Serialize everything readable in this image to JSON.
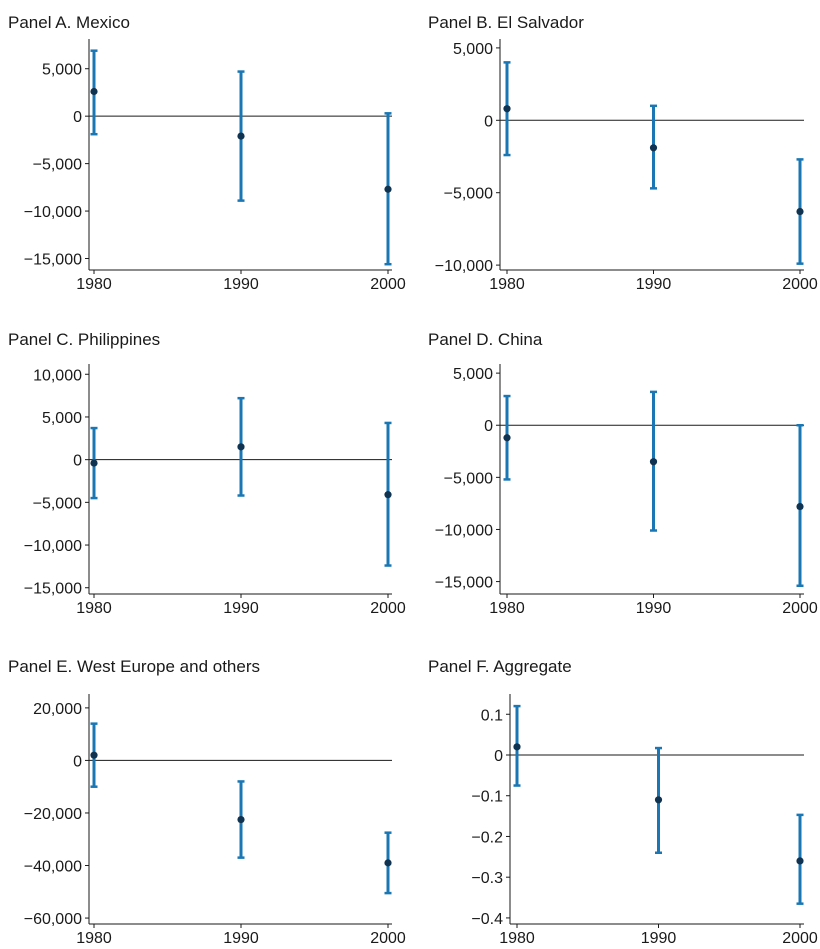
{
  "figure": {
    "colors": {
      "bar": "#1a77b4",
      "point": "#0f3350",
      "axis": "#1a1a1a",
      "zero_line": "#1a1a1a"
    }
  },
  "chart_data": [
    {
      "type": "scatter",
      "title": "Panel A. Mexico",
      "x": [
        "1980",
        "1990",
        "2000"
      ],
      "estimate": [
        2600,
        -2100,
        -7700
      ],
      "ci_low": [
        -1900,
        -8900,
        -15600
      ],
      "ci_high": [
        6900,
        4700,
        300
      ],
      "yticks": [
        5000,
        0,
        -5000,
        -10000,
        -15000
      ],
      "ytick_labels": [
        "5,000",
        "0",
        "−5,000",
        "−10,000",
        "−15,000"
      ],
      "ylim": [
        -16000,
        7500
      ],
      "grid": false
    },
    {
      "type": "scatter",
      "title": "Panel B. El Salvador",
      "x": [
        "1980",
        "1990",
        "2000"
      ],
      "estimate": [
        800,
        -1900,
        -6300
      ],
      "ci_low": [
        -2400,
        -4700,
        -9900
      ],
      "ci_high": [
        4000,
        1000,
        -2700
      ],
      "yticks": [
        5000,
        0,
        -5000,
        -10000
      ],
      "ytick_labels": [
        "5,000",
        "0",
        "−5,000",
        "−10,000"
      ],
      "ylim": [
        -10200,
        5200
      ],
      "grid": false
    },
    {
      "type": "scatter",
      "title": "Panel C. Philippines",
      "x": [
        "1980",
        "1990",
        "2000"
      ],
      "estimate": [
        -400,
        1500,
        -4100
      ],
      "ci_low": [
        -4500,
        -4200,
        -12400
      ],
      "ci_high": [
        3700,
        7200,
        4300
      ],
      "yticks": [
        10000,
        5000,
        0,
        -5000,
        -10000,
        -15000
      ],
      "ytick_labels": [
        "10,000",
        "5,000",
        "0",
        "−5,000",
        "−10,000",
        "−15,000"
      ],
      "ylim": [
        -15500,
        10500
      ],
      "grid": false
    },
    {
      "type": "scatter",
      "title": "Panel D. China",
      "x": [
        "1980",
        "1990",
        "2000"
      ],
      "estimate": [
        -1200,
        -3500,
        -7800
      ],
      "ci_low": [
        -5200,
        -10100,
        -15400
      ],
      "ci_high": [
        2800,
        3200,
        0
      ],
      "yticks": [
        5000,
        0,
        -5000,
        -10000,
        -15000
      ],
      "ytick_labels": [
        "5,000",
        "0",
        "−5,000",
        "−10,000",
        "−15,000"
      ],
      "ylim": [
        -16000,
        5300
      ],
      "grid": false
    },
    {
      "type": "scatter",
      "title": "Panel E. West Europe and others",
      "x": [
        "1980",
        "1990",
        "2000"
      ],
      "estimate": [
        2000,
        -22500,
        -39000
      ],
      "ci_low": [
        -10000,
        -37000,
        -50500
      ],
      "ci_high": [
        14000,
        -8000,
        -27500
      ],
      "yticks": [
        20000,
        0,
        -20000,
        -40000,
        -60000
      ],
      "ytick_labels": [
        "20,000",
        "0",
        "−20,000",
        "−40,000",
        "−60,000"
      ],
      "ylim": [
        -61500,
        23000
      ],
      "grid": false
    },
    {
      "type": "scatter",
      "title": "Panel F. Aggregate",
      "x": [
        "1980",
        "1990",
        "2000"
      ],
      "estimate": [
        0.02,
        -0.11,
        -0.26
      ],
      "ci_low": [
        -0.075,
        -0.24,
        -0.365
      ],
      "ci_high": [
        0.12,
        0.017,
        -0.147
      ],
      "yticks": [
        0.1,
        0,
        -0.1,
        -0.2,
        -0.3,
        -0.4
      ],
      "ytick_labels": [
        "0.1",
        "0",
        "−0.1",
        "−0.2",
        "−0.3",
        "−0.4"
      ],
      "ylim": [
        -0.41,
        0.135
      ],
      "grid": false
    }
  ]
}
